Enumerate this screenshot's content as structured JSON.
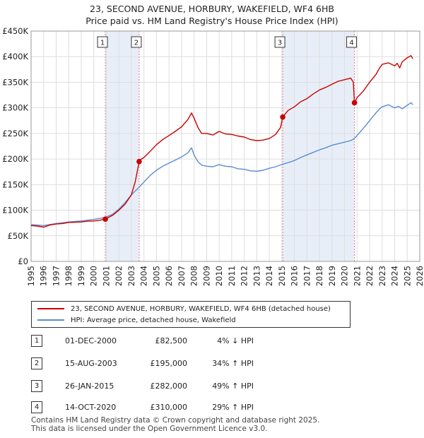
{
  "chart_data": {
    "type": "line",
    "title": "23, SECOND AVENUE, HORBURY, WAKEFIELD, WF4 6HB",
    "subtitle": "Price paid vs. HM Land Registry's House Price Index (HPI)",
    "ylim": [
      0,
      450000
    ],
    "xlim": [
      1995,
      2026
    ],
    "y_ticks": [
      {
        "value": 0,
        "label": "£0"
      },
      {
        "value": 50000,
        "label": "£50K"
      },
      {
        "value": 100000,
        "label": "£100K"
      },
      {
        "value": 150000,
        "label": "£150K"
      },
      {
        "value": 200000,
        "label": "£200K"
      },
      {
        "value": 250000,
        "label": "£250K"
      },
      {
        "value": 300000,
        "label": "£300K"
      },
      {
        "value": 350000,
        "label": "£350K"
      },
      {
        "value": 400000,
        "label": "£400K"
      },
      {
        "value": 450000,
        "label": "£450K"
      }
    ],
    "x_ticks": [
      "1995",
      "1996",
      "1997",
      "1998",
      "1999",
      "2000",
      "2001",
      "2002",
      "2003",
      "2004",
      "2005",
      "2006",
      "2007",
      "2008",
      "2009",
      "2010",
      "2011",
      "2012",
      "2013",
      "2014",
      "2015",
      "2016",
      "2017",
      "2018",
      "2019",
      "2020",
      "2021",
      "2022",
      "2023",
      "2024",
      "2025",
      "2026"
    ],
    "grid": true,
    "series": [
      {
        "name": "23, SECOND AVENUE, HORBURY, WAKEFIELD, WF4 6HB (detached house)",
        "color": "#cc0000",
        "x": [
          1995.0,
          1995.5,
          1996.0,
          1996.5,
          1997.0,
          1997.5,
          1998.0,
          1998.5,
          1999.0,
          1999.5,
          2000.0,
          2000.5,
          2000.92,
          2001.5,
          2002.0,
          2002.5,
          2003.0,
          2003.3,
          2003.62,
          2003.8,
          2004.0,
          2004.5,
          2005.0,
          2005.5,
          2006.0,
          2006.5,
          2007.0,
          2007.5,
          2007.8,
          2008.0,
          2008.3,
          2008.6,
          2009.0,
          2009.5,
          2010.0,
          2010.5,
          2011.0,
          2011.5,
          2012.0,
          2012.5,
          2013.0,
          2013.5,
          2014.0,
          2014.5,
          2014.9,
          2015.07,
          2015.5,
          2016.0,
          2016.5,
          2017.0,
          2017.5,
          2018.0,
          2018.5,
          2019.0,
          2019.5,
          2020.0,
          2020.5,
          2020.7,
          2020.79,
          2021.0,
          2021.5,
          2022.0,
          2022.5,
          2022.8,
          2023.0,
          2023.5,
          2024.0,
          2024.2,
          2024.4,
          2024.6,
          2025.0,
          2025.3,
          2025.45
        ],
        "values": [
          70000,
          69000,
          67000,
          71000,
          73000,
          74000,
          76000,
          76500,
          77000,
          78500,
          79000,
          80500,
          82500,
          90000,
          100000,
          112000,
          130000,
          155000,
          195000,
          200000,
          203000,
          215000,
          228000,
          238000,
          246000,
          254000,
          263000,
          277000,
          290000,
          280000,
          262000,
          250000,
          250000,
          247000,
          254000,
          249000,
          248000,
          245000,
          243000,
          238000,
          236000,
          237000,
          240000,
          248000,
          262000,
          282000,
          295000,
          302000,
          312000,
          318000,
          327000,
          335000,
          340000,
          346000,
          352000,
          355000,
          358000,
          350000,
          310000,
          320000,
          333000,
          350000,
          365000,
          378000,
          385000,
          388000,
          382000,
          387000,
          378000,
          390000,
          398000,
          402000,
          396000
        ]
      },
      {
        "name": "HPI: Average price, detached house, Wakefield",
        "color": "#5b8dcf",
        "x": [
          1995.0,
          1995.5,
          1996.0,
          1996.5,
          1997.0,
          1997.5,
          1998.0,
          1998.5,
          1999.0,
          1999.5,
          2000.0,
          2000.5,
          2000.92,
          2001.5,
          2002.0,
          2002.5,
          2003.0,
          2003.62,
          2004.0,
          2004.5,
          2005.0,
          2005.5,
          2006.0,
          2006.5,
          2007.0,
          2007.5,
          2007.8,
          2008.0,
          2008.3,
          2008.6,
          2009.0,
          2009.5,
          2010.0,
          2010.5,
          2011.0,
          2011.5,
          2012.0,
          2012.5,
          2013.0,
          2013.5,
          2014.0,
          2014.5,
          2015.07,
          2015.5,
          2016.0,
          2016.5,
          2017.0,
          2017.5,
          2018.0,
          2018.5,
          2019.0,
          2019.5,
          2020.0,
          2020.5,
          2020.79,
          2021.0,
          2021.5,
          2022.0,
          2022.5,
          2022.8,
          2023.0,
          2023.5,
          2024.0,
          2024.3,
          2024.6,
          2025.0,
          2025.3,
          2025.45
        ],
        "values": [
          72000,
          71000,
          70000,
          72000,
          74000,
          75500,
          77000,
          78000,
          79000,
          80500,
          82000,
          84000,
          86000,
          92000,
          102000,
          115000,
          130000,
          145000,
          155000,
          168000,
          178000,
          186000,
          192000,
          198000,
          204000,
          212000,
          222000,
          208000,
          195000,
          188000,
          186000,
          185000,
          189000,
          186000,
          185000,
          181000,
          180000,
          177000,
          176000,
          178000,
          182000,
          185000,
          190000,
          193000,
          197000,
          203000,
          208000,
          213000,
          218000,
          222000,
          227000,
          230000,
          233000,
          236000,
          240000,
          246000,
          260000,
          275000,
          290000,
          298000,
          302000,
          306000,
          300000,
          303000,
          298000,
          305000,
          310000,
          306000
        ]
      }
    ],
    "sale_markers": [
      {
        "id": "1",
        "x": 2000.92,
        "value": 82500
      },
      {
        "id": "2",
        "x": 2003.62,
        "value": 195000
      },
      {
        "id": "3",
        "x": 2015.07,
        "value": 282000
      },
      {
        "id": "4",
        "x": 2020.79,
        "value": 310000
      }
    ],
    "shaded_ranges": [
      [
        2000.92,
        2003.62
      ],
      [
        2015.07,
        2020.79
      ]
    ]
  },
  "legend": {
    "property_label": "23, SECOND AVENUE, HORBURY, WAKEFIELD, WF4 6HB (detached house)",
    "hpi_label": "HPI: Average price, detached house, Wakefield"
  },
  "sales": [
    {
      "id": "1",
      "date": "01-DEC-2000",
      "price": "£82,500",
      "hpi": "4% ↓ HPI"
    },
    {
      "id": "2",
      "date": "15-AUG-2003",
      "price": "£195,000",
      "hpi": "34% ↑ HPI"
    },
    {
      "id": "3",
      "date": "26-JAN-2015",
      "price": "£282,000",
      "hpi": "49% ↑ HPI"
    },
    {
      "id": "4",
      "date": "14-OCT-2020",
      "price": "£310,000",
      "hpi": "29% ↑ HPI"
    }
  ],
  "footer": {
    "line1": "Contains HM Land Registry data © Crown copyright and database right 2025.",
    "line2": "This data is licensed under the Open Government Licence v3.0."
  },
  "colors": {
    "property": "#cc0000",
    "hpi": "#5b8dcf",
    "shade": "#e8eef8",
    "grid": "#dddddd"
  }
}
